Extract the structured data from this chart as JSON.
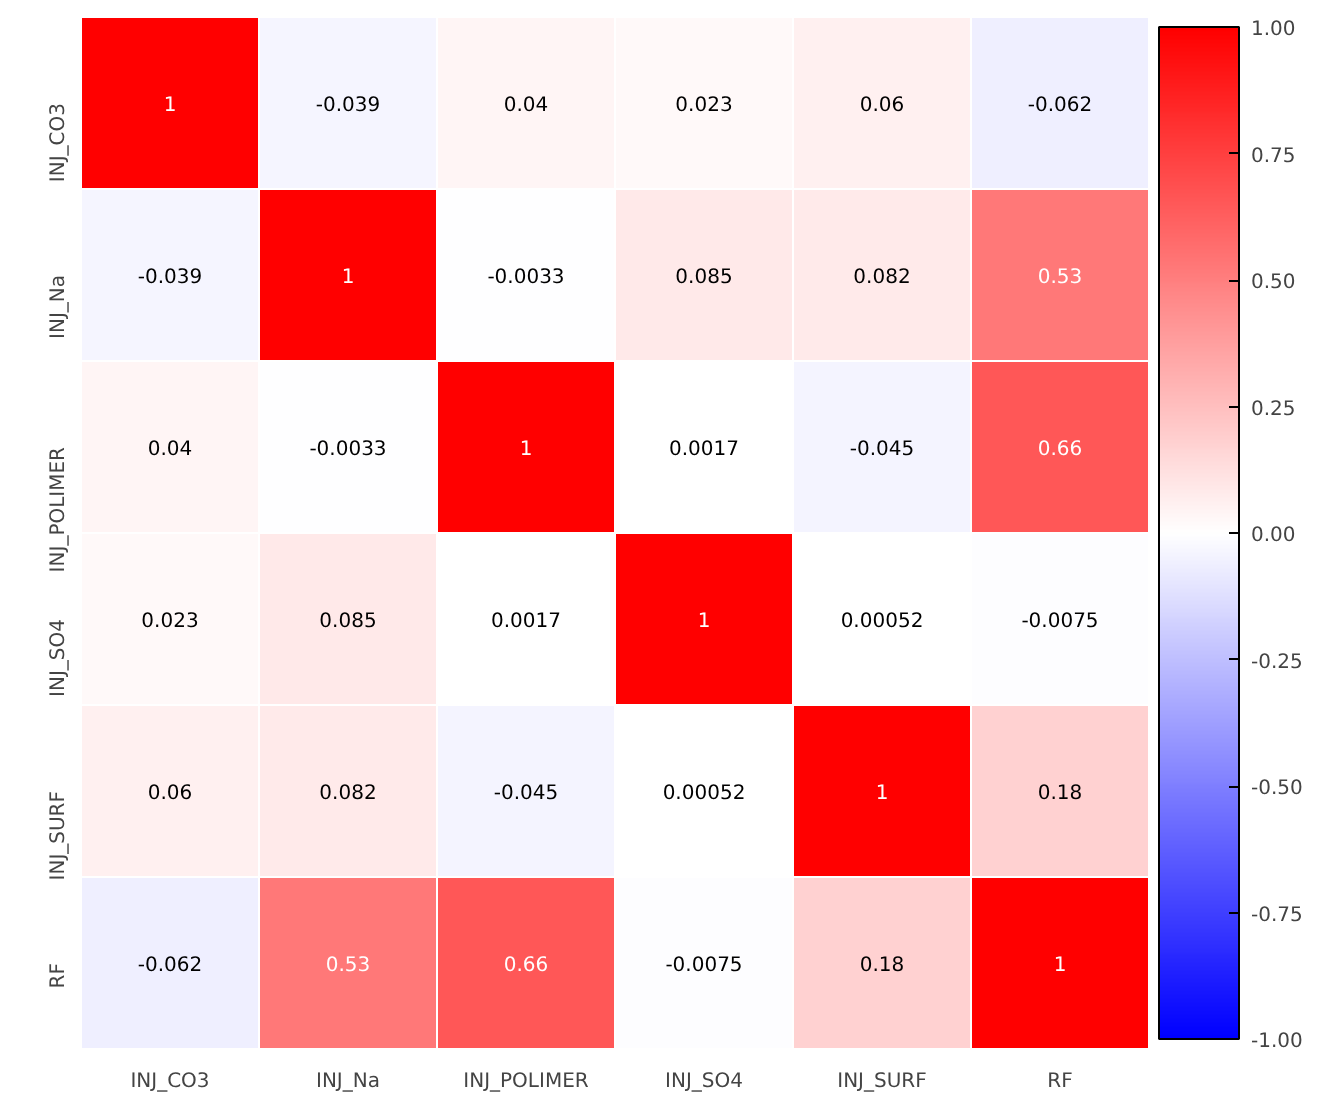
{
  "chart_data": {
    "type": "heatmap",
    "categories": [
      "INJ_CO3",
      "INJ_Na",
      "INJ_POLIMER",
      "INJ_SO4",
      "INJ_SURF",
      "RF"
    ],
    "y_categories": [
      "INJ_CO3",
      "INJ_Na",
      "INJ_POLIMER",
      "INJ_SO4",
      "INJ_SURF",
      "RF"
    ],
    "cells": [
      [
        1,
        -0.039,
        0.04,
        0.023,
        0.06,
        -0.062
      ],
      [
        -0.039,
        1,
        -0.0033,
        0.085,
        0.082,
        0.53
      ],
      [
        0.04,
        -0.0033,
        1,
        0.0017,
        -0.045,
        0.66
      ],
      [
        0.023,
        0.085,
        0.0017,
        1,
        0.00052,
        -0.0075
      ],
      [
        0.06,
        0.082,
        -0.045,
        0.00052,
        1,
        0.18
      ],
      [
        -0.062,
        0.53,
        0.66,
        -0.0075,
        0.18,
        1
      ]
    ],
    "data_labels": true,
    "clim": [
      -1,
      1
    ],
    "cticks": [
      {
        "value": -1,
        "label": "-1.00"
      },
      {
        "value": -0.75,
        "label": "-0.75"
      },
      {
        "value": -0.5,
        "label": "-0.50"
      },
      {
        "value": -0.25,
        "label": "-0.25"
      },
      {
        "value": 0,
        "label": "0.00"
      },
      {
        "value": 0.25,
        "label": "0.25"
      },
      {
        "value": 0.5,
        "label": "0.50"
      },
      {
        "value": 0.75,
        "label": "0.75"
      },
      {
        "value": 1,
        "label": "1.00"
      }
    ]
  }
}
